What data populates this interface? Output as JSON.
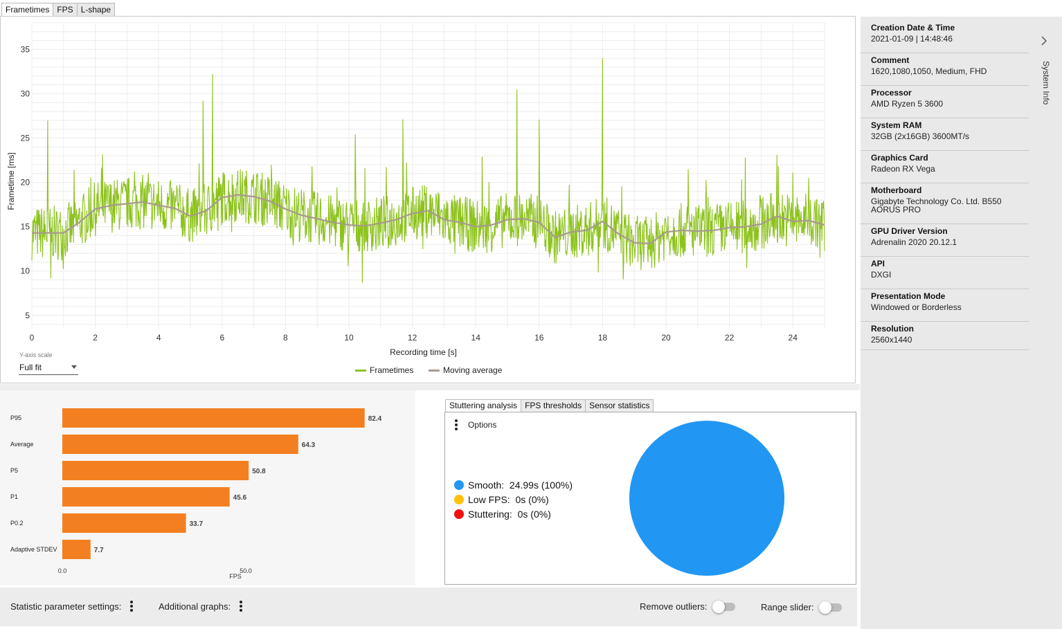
{
  "tabs": [
    {
      "label": "Frametimes",
      "active": true
    },
    {
      "label": "FPS",
      "active": false
    },
    {
      "label": "L-shape",
      "active": false
    }
  ],
  "frametime_chart": {
    "y_axis_label": "Frametime [ms]",
    "x_axis_label": "Recording time [s]",
    "y_ticks": [
      5,
      10,
      15,
      20,
      25,
      30,
      35
    ],
    "x_ticks": [
      0,
      2,
      4,
      6,
      8,
      10,
      12,
      14,
      16,
      18,
      20,
      22,
      24
    ],
    "xlim": [
      0,
      25
    ],
    "ylim": [
      3.5,
      38
    ],
    "frametime_color": "#8cc21a",
    "average_color": "#a89a8c",
    "legend": [
      "Frametimes",
      "Moving average"
    ],
    "avg_x": [
      0,
      0.5,
      1,
      1.5,
      2,
      2.5,
      3,
      3.5,
      4,
      4.5,
      5,
      5.5,
      6,
      6.5,
      7,
      7.5,
      8,
      8.5,
      9,
      9.5,
      10,
      10.5,
      11,
      11.5,
      12,
      12.5,
      13,
      13.5,
      14,
      14.5,
      15,
      15.5,
      16,
      16.5,
      17,
      17.5,
      18,
      18.5,
      19,
      19.5,
      20,
      20.5,
      21,
      21.5,
      22,
      22.5,
      23,
      23.5,
      24,
      24.5,
      25
    ],
    "avg_y": [
      14.3,
      14.3,
      14.3,
      15.5,
      17.0,
      17.4,
      17.6,
      17.8,
      17.4,
      17.1,
      16.2,
      16.8,
      18.3,
      18.6,
      18.4,
      17.9,
      17.0,
      16.3,
      15.9,
      15.5,
      15.2,
      15.1,
      15.4,
      15.8,
      16.5,
      16.8,
      15.8,
      15.5,
      15.0,
      15.2,
      15.8,
      15.9,
      15.5,
      13.8,
      14.4,
      14.6,
      15.6,
      14.2,
      13.2,
      13.1,
      14.4,
      14.6,
      14.5,
      14.6,
      14.9,
      15.0,
      15.3,
      16.2,
      15.6,
      15.7,
      15.2
    ],
    "spikes_x": [
      0.5,
      0.6,
      5.4,
      5.7,
      10.2,
      11.7,
      14.2,
      15.3,
      16.0,
      18.0,
      20.7,
      22.5,
      23.5,
      24.0,
      24.5
    ],
    "spikes_y": [
      27,
      9.2,
      29.2,
      32.2,
      25.4,
      27.1,
      22.9,
      30.5,
      27.1,
      34,
      21.5,
      22.8,
      23.1,
      21.1,
      20.5
    ],
    "y_scale": {
      "label": "Y-axis scale",
      "value": "Full fit"
    }
  },
  "bar_chart": {
    "type": "bar",
    "categories": [
      "P95",
      "Average",
      "P5",
      "P1",
      "P0.2",
      "Adaptive STDEV"
    ],
    "values": [
      82.4,
      64.3,
      50.8,
      45.6,
      33.7,
      7.7
    ],
    "value_labels": [
      "82.4",
      "64.3",
      "50.8",
      "45.6",
      "33.7",
      "7.7"
    ],
    "x_ticks": [
      "0.0",
      "50.0"
    ],
    "xlabel": "FPS",
    "color": "#f37f20"
  },
  "stutter_tabs": [
    {
      "label": "Stuttering analysis",
      "active": true
    },
    {
      "label": "FPS thresholds",
      "active": false
    },
    {
      "label": "Sensor statistics",
      "active": false
    }
  ],
  "stuttering": {
    "options_label": "Options",
    "legend": [
      {
        "label": "Smooth:",
        "value": "24.99s (100%)",
        "color": "#2196f3"
      },
      {
        "label": "Low FPS:",
        "value": "0s (0%)",
        "color": "#ffc107"
      },
      {
        "label": "Stuttering:",
        "value": "0s (0%)",
        "color": "#f01010"
      }
    ],
    "pie_color": "#2196f3",
    "pie_fraction_smooth": 1.0
  },
  "bottom_bar": {
    "stat_settings_label": "Statistic parameter settings:",
    "additional_graphs_label": "Additional graphs:",
    "remove_outliers_label": "Remove outliers:",
    "range_slider_label": "Range slider:"
  },
  "system_info": {
    "title": "System Info",
    "items": [
      {
        "label": "Creation Date & Time",
        "value": "2021-01-09  |  14:48:46"
      },
      {
        "label": "Comment",
        "value": "1620,1080,1050, Medium, FHD"
      },
      {
        "label": "Processor",
        "value": "AMD Ryzen 5 3600"
      },
      {
        "label": "System RAM",
        "value": "32GB (2x16GB) 3600MT/s"
      },
      {
        "label": "Graphics Card",
        "value": "Radeon RX Vega"
      },
      {
        "label": "Motherboard",
        "value": "Gigabyte Technology Co. Ltd. B550 AORUS PRO"
      },
      {
        "label": "GPU Driver Version",
        "value": "Adrenalin 2020 20.12.1"
      },
      {
        "label": "API",
        "value": "DXGI"
      },
      {
        "label": "Presentation Mode",
        "value": "Windowed or Borderless"
      },
      {
        "label": "Resolution",
        "value": "2560x1440"
      }
    ]
  }
}
